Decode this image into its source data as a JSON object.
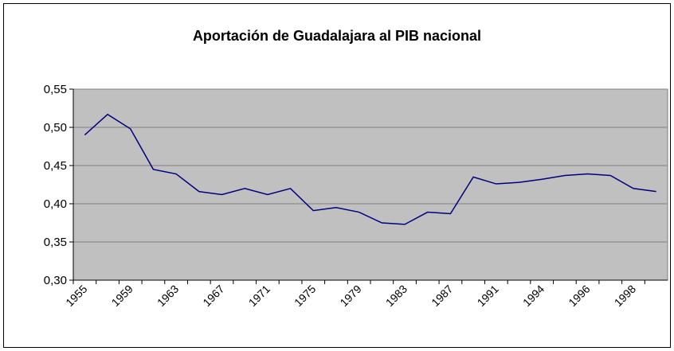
{
  "chart_data": {
    "type": "line",
    "title": "Aportación de Guadalajara al PIB nacional",
    "categories": [
      "1955",
      null,
      "1959",
      null,
      "1963",
      null,
      "1967",
      null,
      "1971",
      null,
      "1975",
      null,
      "1979",
      null,
      "1983",
      null,
      "1987",
      null,
      "1991",
      null,
      "1994",
      null,
      "1996",
      null,
      "1998",
      null
    ],
    "series": [
      {
        "name": "Aportación",
        "color": "#000080",
        "values": [
          0.49,
          0.517,
          0.498,
          0.445,
          0.439,
          0.416,
          0.412,
          0.42,
          0.412,
          0.42,
          0.391,
          0.395,
          0.389,
          0.375,
          0.373,
          0.389,
          0.387,
          0.435,
          0.426,
          0.428,
          0.432,
          0.437,
          0.439,
          0.437,
          0.42,
          0.416
        ]
      }
    ],
    "ylim": [
      0.3,
      0.55
    ],
    "yticks": [
      {
        "value": 0.3,
        "label": "0,30"
      },
      {
        "value": 0.35,
        "label": "0,35"
      },
      {
        "value": 0.4,
        "label": "0,40"
      },
      {
        "value": 0.45,
        "label": "0,45"
      },
      {
        "value": 0.5,
        "label": "0,50"
      },
      {
        "value": 0.55,
        "label": "0,55"
      }
    ],
    "grid": true
  }
}
